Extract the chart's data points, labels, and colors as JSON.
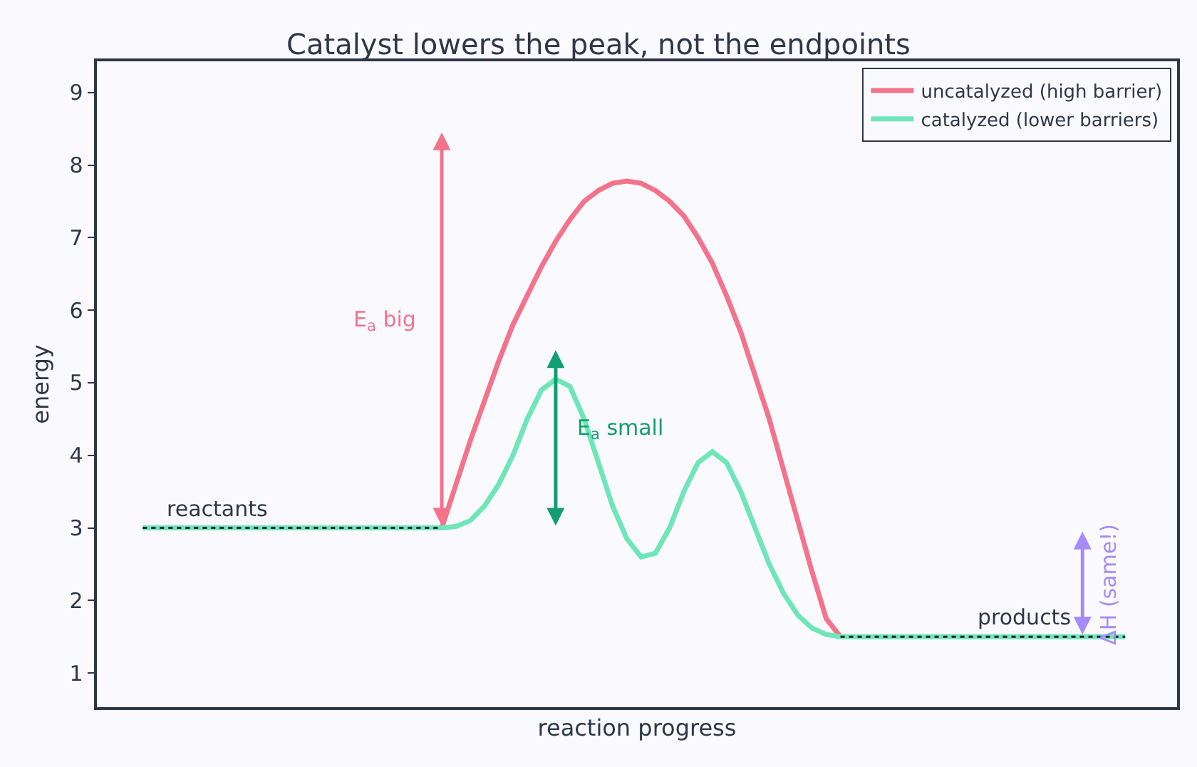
{
  "chart_data": {
    "type": "line",
    "title": "Catalyst lowers the peak, not the endpoints",
    "xlabel": "reaction progress",
    "ylabel": "energy",
    "categories": [
      null,
      null,
      null,
      null,
      null,
      null,
      null,
      null,
      null,
      null,
      null,
      null,
      null,
      null,
      null,
      null,
      null,
      null,
      null,
      null,
      null,
      null,
      null,
      null,
      null,
      null,
      null,
      null,
      null,
      null,
      null,
      null,
      null,
      null,
      null,
      null,
      null,
      null,
      null,
      null,
      null,
      null,
      null,
      null,
      null,
      null,
      null,
      null,
      null,
      null,
      null,
      null,
      null,
      null,
      null,
      null,
      null,
      null,
      null,
      null,
      null,
      null,
      null,
      null,
      null,
      null,
      null,
      null,
      null,
      null
    ],
    "series": [
      {
        "name": "uncatalyzed (high barrier)",
        "color": "#f4738a",
        "values": [
          null,
          null,
          null,
          null,
          null,
          null,
          null,
          null,
          null,
          null,
          null,
          null,
          null,
          null,
          null,
          null,
          null,
          null,
          null,
          null,
          null,
          3,
          3.6,
          4.2,
          4.75,
          5.3,
          5.8,
          6.2,
          6.6,
          6.95,
          7.25,
          7.5,
          7.65,
          7.75,
          7.78,
          7.75,
          7.65,
          7.5,
          7.3,
          7.0,
          6.65,
          6.2,
          5.7,
          5.1,
          4.5,
          3.8,
          3.1,
          2.4,
          1.75,
          1.5,
          null,
          null,
          null,
          null,
          null,
          null,
          null,
          null,
          null,
          null,
          null,
          null,
          null,
          null,
          null,
          null,
          null,
          null,
          null,
          null
        ]
      },
      {
        "name": "catalyzed (lower barriers)",
        "color": "#6ee6b8",
        "values": [
          3,
          3,
          3,
          3,
          3,
          3,
          3,
          3,
          3,
          3,
          3,
          3,
          3,
          3,
          3,
          3,
          3,
          3,
          3,
          3,
          3,
          3,
          3.02,
          3.1,
          3.3,
          3.6,
          4.0,
          4.5,
          4.9,
          5.05,
          4.95,
          4.5,
          3.9,
          3.3,
          2.85,
          2.6,
          2.65,
          3.0,
          3.5,
          3.9,
          4.05,
          3.9,
          3.5,
          3.0,
          2.5,
          2.1,
          1.8,
          1.62,
          1.53,
          1.5,
          1.5,
          1.5,
          1.5,
          1.5,
          1.5,
          1.5,
          1.5,
          1.5,
          1.5,
          1.5,
          1.5,
          1.5,
          1.5,
          1.5,
          1.5,
          1.5,
          1.5,
          1.5,
          1.5,
          1.5
        ]
      }
    ],
    "ylim": [
      0.53,
      9.43
    ],
    "yticks": [
      1,
      2,
      3,
      4,
      5,
      6,
      7,
      8,
      9
    ],
    "tick_labels": "y",
    "legend": "top right",
    "line_style": "solid",
    "ref_lines": [
      {
        "axis": "y",
        "value": 3,
        "line_style": "dotted",
        "color": "#1a202c"
      },
      {
        "axis": "y",
        "value": 1.5,
        "line_style": "dotted",
        "color": "#1a202c"
      }
    ],
    "annotations": [
      "reactants",
      "products",
      "E$_{a}$ big",
      "E$_{a}$ small",
      "ΔH (same!)"
    ]
  }
}
